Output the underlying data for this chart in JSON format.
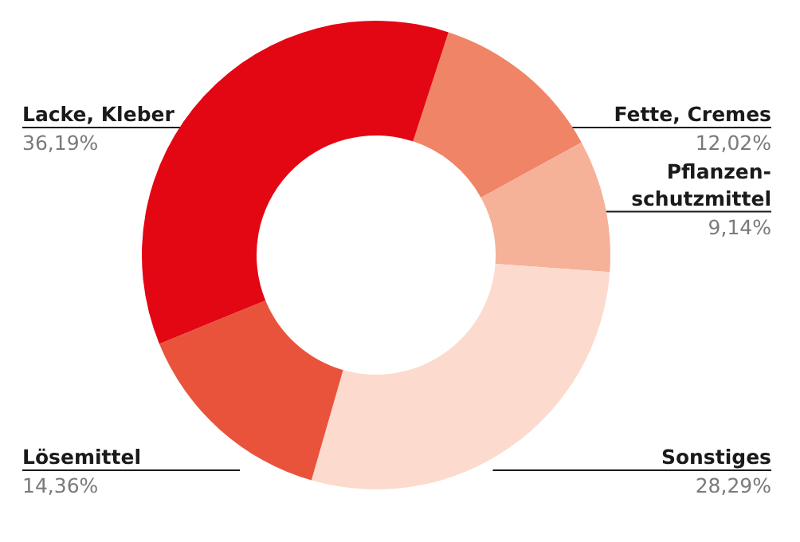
{
  "chart_data": {
    "type": "donut",
    "categories": [
      "Fette, Cremes",
      "Pflanzen-\nschutzmittel",
      "Sonstiges",
      "Lösemittel",
      "Lacke, Kleber"
    ],
    "values": [
      12.02,
      9.14,
      28.29,
      14.36,
      36.19
    ],
    "value_labels": [
      "12,02%",
      "9,14%",
      "28,29%",
      "14,36%",
      "36,19%"
    ],
    "colors": [
      "#f08467",
      "#f6b199",
      "#fcdacd",
      "#e9533b",
      "#e30613"
    ],
    "legend": false
  }
}
